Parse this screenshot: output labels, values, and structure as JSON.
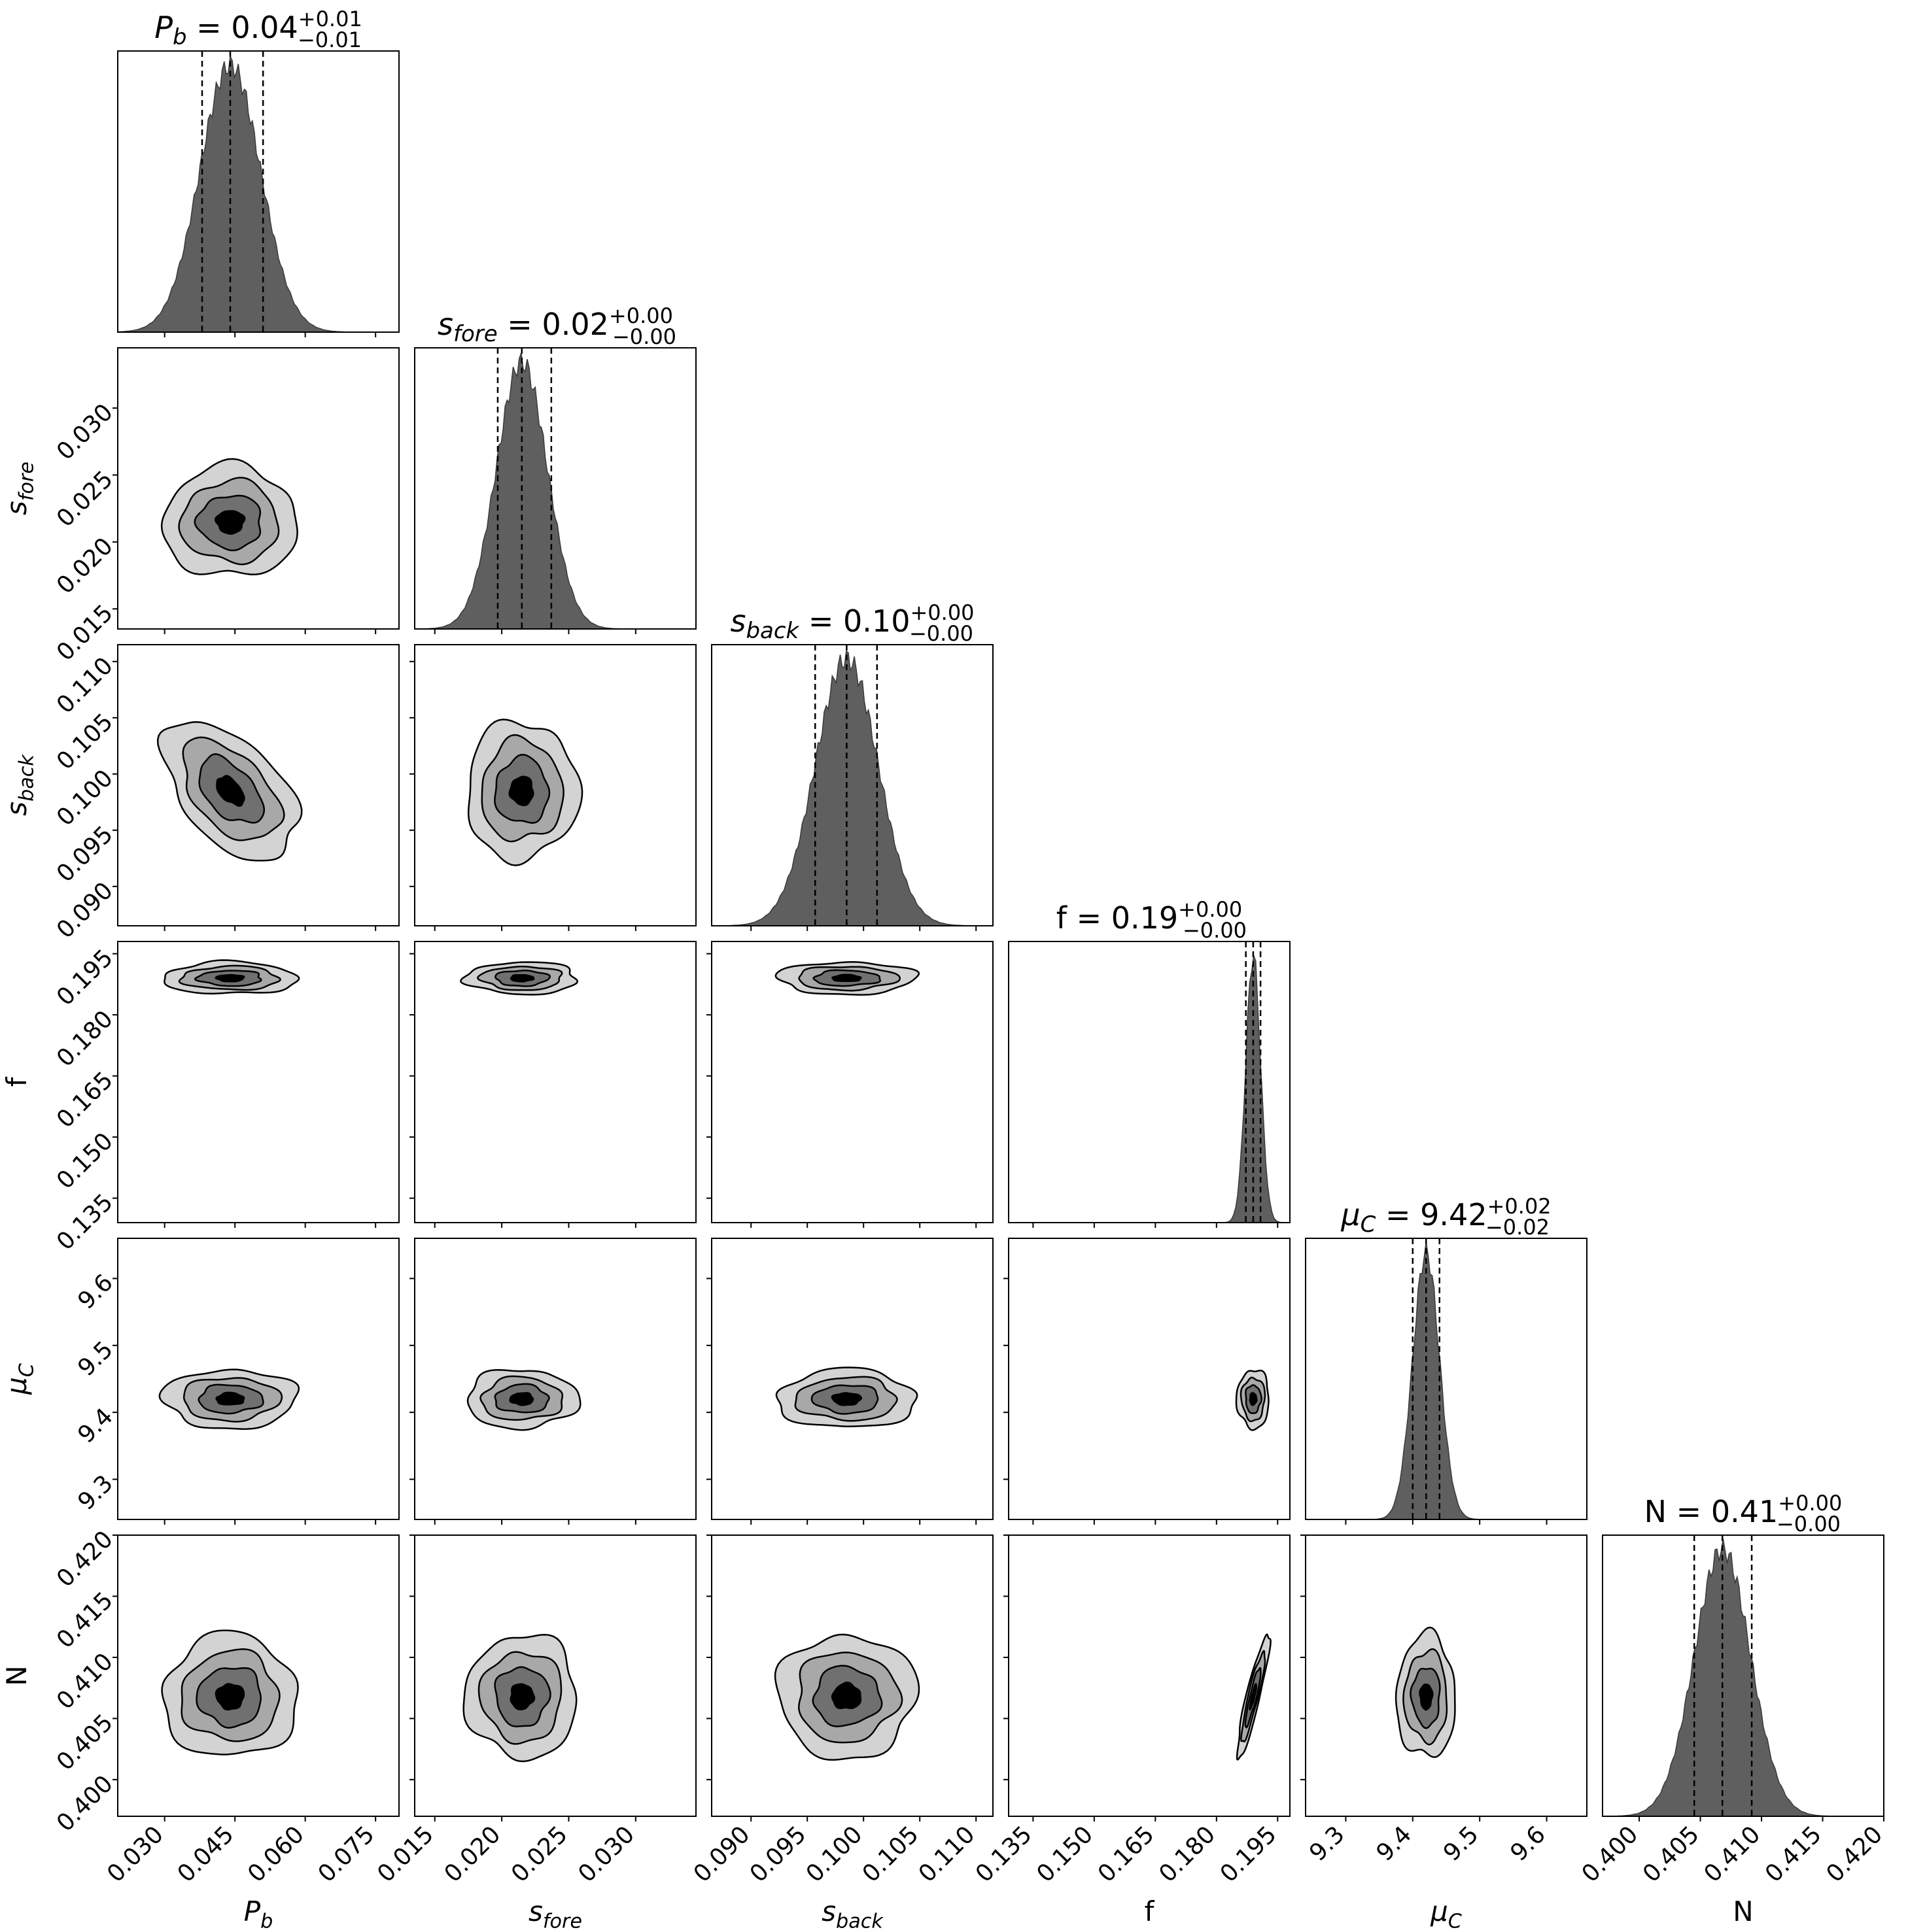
{
  "chart_data": {
    "type": "corner",
    "parameters": [
      {
        "id": "Pb",
        "label": "P",
        "label_sub": "b",
        "title_prefix": "P",
        "title_sub": "b",
        "title_value": " = 0.04",
        "title_plus": "+0.01",
        "title_minus": "−0.01",
        "median": 0.044,
        "quantile_lo": 0.038,
        "quantile_hi": 0.051,
        "sigma": 0.0065,
        "range": [
          0.02,
          0.08
        ],
        "ticks": [
          0.03,
          0.045,
          0.06,
          0.075
        ],
        "tick_labels": [
          "0.030",
          "0.045",
          "0.060",
          "0.075"
        ]
      },
      {
        "id": "sfore",
        "label": "s",
        "label_sub": "fore",
        "title_prefix": "s",
        "title_sub": "fore",
        "title_value": " = 0.02",
        "title_plus": "+0.00",
        "title_minus": "−0.00",
        "median": 0.0215,
        "quantile_lo": 0.0197,
        "quantile_hi": 0.0237,
        "sigma": 0.0019,
        "range": [
          0.0135,
          0.0345
        ],
        "ticks": [
          0.015,
          0.02,
          0.025,
          0.03
        ],
        "tick_labels": [
          "0.015",
          "0.020",
          "0.025",
          "0.030"
        ]
      },
      {
        "id": "sback",
        "label": "s",
        "label_sub": "back",
        "title_prefix": "s",
        "title_sub": "back",
        "title_value": " = 0.10",
        "title_plus": "+0.00",
        "title_minus": "−0.00",
        "median": 0.0985,
        "quantile_lo": 0.0957,
        "quantile_hi": 0.1012,
        "sigma": 0.0028,
        "range": [
          0.0865,
          0.1115
        ],
        "ticks": [
          0.09,
          0.095,
          0.1,
          0.105,
          0.11
        ],
        "tick_labels": [
          "0.090",
          "0.095",
          "0.100",
          "0.105",
          "0.110"
        ]
      },
      {
        "id": "f",
        "label": "f",
        "label_sub": "",
        "title_prefix": "f",
        "title_sub": "",
        "title_value": " = 0.19",
        "title_plus": "+0.00",
        "title_minus": "−0.00",
        "median": 0.189,
        "quantile_lo": 0.1872,
        "quantile_hi": 0.1908,
        "sigma": 0.0018,
        "range": [
          0.129,
          0.198
        ],
        "ticks": [
          0.135,
          0.15,
          0.165,
          0.18,
          0.195
        ],
        "tick_labels": [
          "0.135",
          "0.150",
          "0.165",
          "0.180",
          "0.195"
        ]
      },
      {
        "id": "muC",
        "label": "μ",
        "label_sub": "C",
        "title_prefix": "μ",
        "title_sub": "C",
        "title_value": " = 9.42",
        "title_plus": "+0.02",
        "title_minus": "−0.02",
        "median": 9.42,
        "quantile_lo": 9.4,
        "quantile_hi": 9.44,
        "sigma": 0.02,
        "range": [
          9.24,
          9.66
        ],
        "ticks": [
          9.3,
          9.4,
          9.5,
          9.6
        ],
        "tick_labels": [
          "9.3",
          "9.4",
          "9.5",
          "9.6"
        ]
      },
      {
        "id": "N",
        "label": "N",
        "label_sub": "",
        "title_prefix": "N",
        "title_sub": "",
        "title_value": " = 0.41",
        "title_plus": "+0.00",
        "title_minus": "−0.00",
        "median": 0.4068,
        "quantile_lo": 0.4045,
        "quantile_hi": 0.4092,
        "sigma": 0.0023,
        "range": [
          0.397,
          0.42
        ],
        "ticks": [
          0.4,
          0.405,
          0.41,
          0.415,
          0.42
        ],
        "tick_labels": [
          "0.400",
          "0.405",
          "0.410",
          "0.415",
          "0.420"
        ]
      }
    ],
    "contour_levels": 4,
    "fill_colors": [
      "#d3d3d3",
      "#a8a8a8",
      "#707070",
      "#000000"
    ],
    "histogram_color": "#5f5f5f",
    "correlations": {
      "f,N": 0.9,
      "Pb,sback": -0.5
    }
  }
}
